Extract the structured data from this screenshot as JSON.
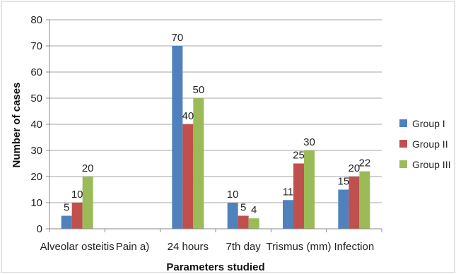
{
  "chart_data": {
    "type": "bar",
    "categories": [
      "Alveolar osteitis",
      "Pain a)",
      "24 hours",
      "7th day",
      "Trismus (mm)",
      "Infection"
    ],
    "series": [
      {
        "name": "Group I",
        "color": "#4F81BD",
        "values": [
          5,
          null,
          70,
          10,
          11,
          15
        ]
      },
      {
        "name": "Group II",
        "color": "#C0504D",
        "values": [
          10,
          null,
          40,
          5,
          25,
          20
        ]
      },
      {
        "name": "Group III",
        "color": "#9BBB59",
        "values": [
          20,
          null,
          50,
          4,
          30,
          22
        ]
      }
    ],
    "title": "",
    "xlabel": "Parameters studied",
    "ylabel": "Number of cases",
    "ylim": [
      0,
      80
    ],
    "yticks": [
      0,
      10,
      20,
      30,
      40,
      50,
      60,
      70,
      80
    ],
    "grid": true,
    "legend": "right"
  }
}
